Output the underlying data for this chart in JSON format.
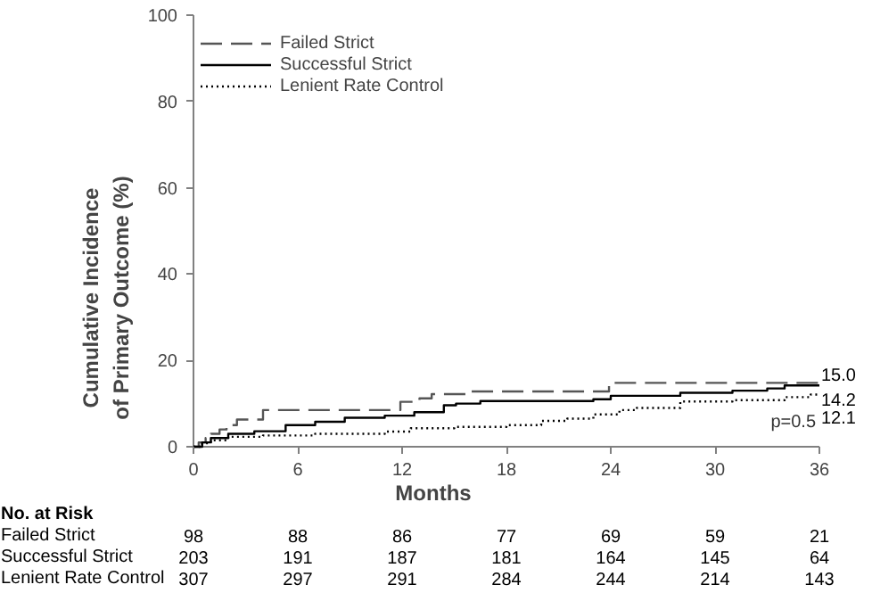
{
  "chart_data": {
    "type": "step",
    "xlabel": "Months",
    "ylabel": "Cumulative Incidence of Primary Outcome (%)",
    "xlim": [
      0,
      36
    ],
    "ylim": [
      0,
      100
    ],
    "xticks": [
      0,
      6,
      12,
      18,
      24,
      30,
      36
    ],
    "yticks": [
      0,
      20,
      40,
      60,
      80,
      100
    ],
    "grid": false,
    "legend": "top left",
    "series": [
      {
        "name": "Failed Strict",
        "color": "#555555",
        "line_style": "dashed",
        "x": [
          0,
          0.3,
          0.7,
          1.0,
          1.5,
          1.9,
          2.5,
          4.0,
          11.9,
          13.0,
          13.7,
          15.9,
          23.9,
          36
        ],
        "values": [
          0,
          1.0,
          2.0,
          3.0,
          4.0,
          5.0,
          6.3,
          8.5,
          10.4,
          11.2,
          12.2,
          12.8,
          14.8,
          15.0
        ],
        "value_labels": [
          null,
          null,
          null,
          null,
          null,
          null,
          null,
          null,
          null,
          null,
          null,
          null,
          null,
          "15.0"
        ]
      },
      {
        "name": "Successful Strict",
        "color": "#000000",
        "line_style": "solid",
        "x": [
          0,
          0.5,
          1.0,
          2.0,
          3.5,
          5.3,
          7.0,
          8.7,
          11.0,
          12.7,
          14.4,
          15.1,
          16.5,
          23.0,
          24.0,
          28.0,
          31.0,
          33.0,
          34.0,
          36
        ],
        "values": [
          0,
          1.0,
          2.0,
          3.0,
          3.6,
          5.0,
          5.8,
          6.7,
          7.2,
          8.0,
          9.6,
          10.0,
          10.6,
          11.0,
          11.8,
          12.5,
          13.0,
          13.5,
          14.2,
          14.2
        ],
        "value_labels": [
          null,
          null,
          null,
          null,
          null,
          null,
          null,
          null,
          null,
          null,
          null,
          null,
          null,
          null,
          null,
          null,
          null,
          null,
          null,
          "14.2"
        ]
      },
      {
        "name": "Lenient Rate Control",
        "color": "#000000",
        "line_style": "dotted",
        "x": [
          0,
          0.5,
          1.0,
          2.0,
          4.0,
          7.0,
          11.0,
          12.5,
          15.0,
          18.0,
          20.0,
          21.5,
          23.0,
          24.5,
          25.5,
          28.0,
          31.0,
          34.0,
          35.5,
          36
        ],
        "values": [
          0,
          0.8,
          1.5,
          2.3,
          2.6,
          3.0,
          3.5,
          4.3,
          4.6,
          5.0,
          6.0,
          6.5,
          7.5,
          8.5,
          9.0,
          10.5,
          10.8,
          11.5,
          12.1,
          12.1
        ],
        "value_labels": [
          null,
          null,
          null,
          null,
          null,
          null,
          null,
          null,
          null,
          null,
          null,
          null,
          null,
          null,
          null,
          null,
          null,
          null,
          null,
          "12.1"
        ]
      }
    ],
    "annotations": [
      "p=0.5",
      "No. at Risk",
      "Failed Strict",
      "98",
      "88",
      "86",
      "77",
      "69",
      "59",
      "21",
      "Successful Strict",
      "203",
      "191",
      "187",
      "181",
      "164",
      "145",
      "64",
      "Lenient Rate Control",
      "307",
      "297",
      "291",
      "284",
      "244",
      "214",
      "143"
    ]
  }
}
